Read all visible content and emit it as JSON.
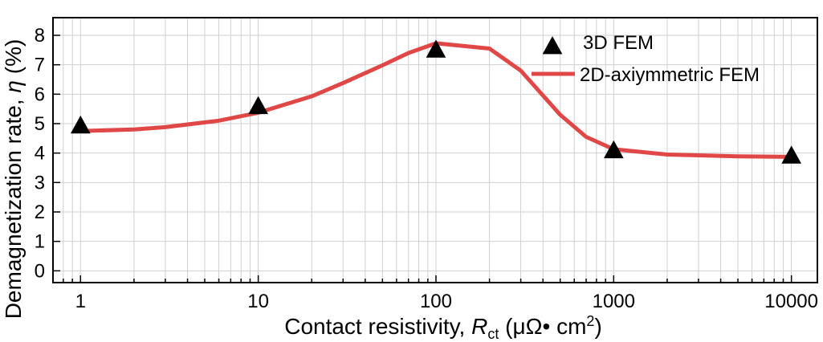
{
  "chart_data": {
    "type": "line",
    "xscale": "log",
    "xlim": [
      0.7,
      14000
    ],
    "ylim": [
      -0.4,
      8.6
    ],
    "x_ticks": [
      {
        "value": 1,
        "label": "1"
      },
      {
        "value": 10,
        "label": "10"
      },
      {
        "value": 100,
        "label": "100"
      },
      {
        "value": 1000,
        "label": "1000"
      },
      {
        "value": 10000,
        "label": "10000"
      }
    ],
    "y_ticks": [
      {
        "value": 0,
        "label": "0"
      },
      {
        "value": 1,
        "label": "1"
      },
      {
        "value": 2,
        "label": "2"
      },
      {
        "value": 3,
        "label": "3"
      },
      {
        "value": 4,
        "label": "4"
      },
      {
        "value": 5,
        "label": "5"
      },
      {
        "value": 6,
        "label": "6"
      },
      {
        "value": 7,
        "label": "7"
      },
      {
        "value": 8,
        "label": "8"
      }
    ],
    "grid": true,
    "legend_position": "top-right",
    "xlabel": {
      "prefix": "Contact resistivity, ",
      "symbol": "R",
      "subscript": "ct",
      "units": " (μΩ• cm",
      "superscript": "2",
      "close": ")"
    },
    "ylabel": {
      "prefix": "Demagnetization rate, ",
      "symbol": "η",
      "units": " (%)"
    },
    "series": [
      {
        "name": "3D FEM",
        "kind": "scatter",
        "marker": "triangle",
        "color": "#000000",
        "x": [
          1,
          10,
          100,
          1000,
          10000
        ],
        "y": [
          4.92,
          5.58,
          7.5,
          4.08,
          3.9
        ]
      },
      {
        "name": "2D-axiymmetric FEM",
        "kind": "line",
        "color": "#e04848",
        "x": [
          1,
          2,
          3,
          6,
          10,
          20,
          30,
          50,
          70,
          100,
          200,
          300,
          500,
          700,
          1000,
          2000,
          5000,
          10000
        ],
        "y": [
          4.75,
          4.8,
          4.88,
          5.1,
          5.37,
          5.93,
          6.38,
          6.98,
          7.4,
          7.73,
          7.55,
          6.8,
          5.3,
          4.55,
          4.13,
          3.95,
          3.89,
          3.87
        ]
      }
    ]
  }
}
